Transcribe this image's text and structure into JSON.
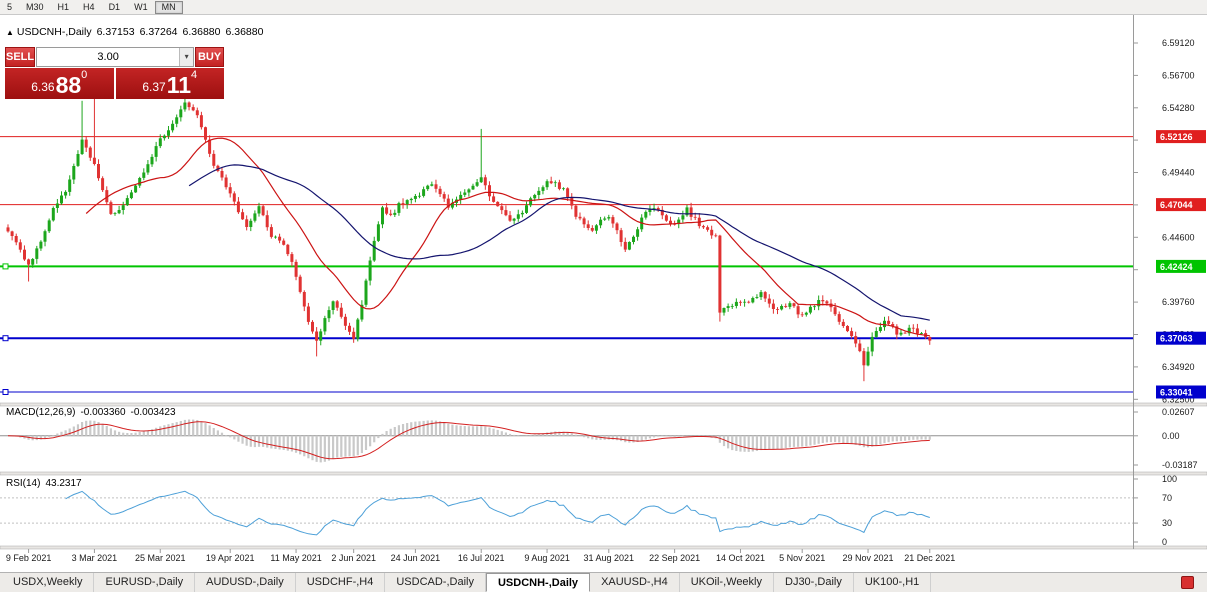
{
  "toolbar": {
    "timeframes": [
      "5",
      "M30",
      "H1",
      "H4",
      "D1",
      "W1",
      "MN"
    ],
    "active": "MN"
  },
  "chart_header": {
    "collapse_icon": "▲",
    "symbol": "USDCNH-,Daily",
    "open": "6.37153",
    "high": "6.37264",
    "low": "6.36880",
    "close": "6.36880"
  },
  "trade_panel": {
    "sell_label": "SELL",
    "buy_label": "BUY",
    "volume": "3.00",
    "dropdown_icon": "▾",
    "sell_price": {
      "prefix": "6.36",
      "big": "88",
      "sup": "0"
    },
    "buy_price": {
      "prefix": "6.37",
      "big": "11",
      "sup": "4"
    }
  },
  "indicators": {
    "macd_title": "MACD(12,26,9)",
    "macd_value1": "-0.003360",
    "macd_value2": "-0.003423",
    "rsi_title": "RSI(14)",
    "rsi_value": "43.2317"
  },
  "tabs": {
    "items": [
      "USDX,Weekly",
      "EURUSD-,Daily",
      "AUDUSD-,Daily",
      "USDCHF-,H4",
      "USDCAD-,Daily",
      "USDCNH-,Daily",
      "XAUUSD-,H4",
      "UKOil-,Weekly",
      "DJ30-,Daily",
      "UK100-,H1"
    ],
    "active_index": 5,
    "alert_icon_color": "#d83030"
  },
  "chart_data": {
    "type": "candlestick",
    "symbol": "USDCNH",
    "timeframe": "Daily",
    "last_close": 6.3688,
    "n_candles": 225,
    "price_range": {
      "top": 6.6121,
      "bottom": 6.3222
    },
    "colors": {
      "up": "#1ca61c",
      "down": "#e03232"
    },
    "close_anchors": [
      [
        0,
        6.452
      ],
      [
        3,
        6.437
      ],
      [
        5,
        6.425
      ],
      [
        8,
        6.443
      ],
      [
        11,
        6.468
      ],
      [
        14,
        6.48
      ],
      [
        18,
        6.518
      ],
      [
        21,
        6.5
      ],
      [
        25,
        6.462
      ],
      [
        28,
        6.47
      ],
      [
        31,
        6.483
      ],
      [
        34,
        6.5
      ],
      [
        37,
        6.519
      ],
      [
        40,
        6.53
      ],
      [
        43,
        6.545
      ],
      [
        46,
        6.538
      ],
      [
        48,
        6.52
      ],
      [
        50,
        6.5
      ],
      [
        54,
        6.478
      ],
      [
        58,
        6.455
      ],
      [
        61,
        6.468
      ],
      [
        64,
        6.448
      ],
      [
        67,
        6.44
      ],
      [
        69,
        6.428
      ],
      [
        71,
        6.405
      ],
      [
        73,
        6.382
      ],
      [
        75,
        6.368
      ],
      [
        77,
        6.384
      ],
      [
        79,
        6.398
      ],
      [
        81,
        6.388
      ],
      [
        83,
        6.375
      ],
      [
        84,
        6.371
      ],
      [
        86,
        6.395
      ],
      [
        88,
        6.43
      ],
      [
        90,
        6.455
      ],
      [
        91,
        6.468
      ],
      [
        93,
        6.462
      ],
      [
        95,
        6.47
      ],
      [
        97,
        6.474
      ],
      [
        100,
        6.477
      ],
      [
        103,
        6.487
      ],
      [
        105,
        6.479
      ],
      [
        107,
        6.468
      ],
      [
        109,
        6.474
      ],
      [
        111,
        6.478
      ],
      [
        113,
        6.484
      ],
      [
        115,
        6.49
      ],
      [
        117,
        6.478
      ],
      [
        119,
        6.468
      ],
      [
        122,
        6.458
      ],
      [
        125,
        6.466
      ],
      [
        127,
        6.474
      ],
      [
        129,
        6.481
      ],
      [
        131,
        6.487
      ],
      [
        133,
        6.486
      ],
      [
        135,
        6.481
      ],
      [
        138,
        6.462
      ],
      [
        140,
        6.455
      ],
      [
        142,
        6.452
      ],
      [
        144,
        6.458
      ],
      [
        146,
        6.462
      ],
      [
        148,
        6.45
      ],
      [
        150,
        6.438
      ],
      [
        152,
        6.446
      ],
      [
        154,
        6.46
      ],
      [
        156,
        6.469
      ],
      [
        158,
        6.465
      ],
      [
        160,
        6.458
      ],
      [
        162,
        6.455
      ],
      [
        164,
        6.462
      ],
      [
        165,
        6.467
      ],
      [
        167,
        6.459
      ],
      [
        169,
        6.452
      ],
      [
        171,
        6.448
      ],
      [
        172,
        6.446
      ],
      [
        173,
        6.39
      ],
      [
        175,
        6.393
      ],
      [
        177,
        6.396
      ],
      [
        179,
        6.397
      ],
      [
        181,
        6.4
      ],
      [
        183,
        6.405
      ],
      [
        185,
        6.398
      ],
      [
        186,
        6.392
      ],
      [
        188,
        6.394
      ],
      [
        190,
        6.396
      ],
      [
        192,
        6.39
      ],
      [
        193,
        6.388
      ],
      [
        195,
        6.393
      ],
      [
        197,
        6.398
      ],
      [
        199,
        6.395
      ],
      [
        200,
        6.392
      ],
      [
        202,
        6.383
      ],
      [
        203,
        6.378
      ],
      [
        205,
        6.372
      ],
      [
        206,
        6.368
      ],
      [
        208,
        6.352
      ],
      [
        209,
        6.36
      ],
      [
        210,
        6.372
      ],
      [
        212,
        6.378
      ],
      [
        213,
        6.382
      ],
      [
        215,
        6.378
      ],
      [
        216,
        6.375
      ],
      [
        218,
        6.376
      ],
      [
        220,
        6.378
      ],
      [
        222,
        6.373
      ],
      [
        224,
        6.3688
      ]
    ],
    "wick_overrides": [
      {
        "i": 5,
        "l": 6.413
      },
      {
        "i": 18,
        "h": 6.548
      },
      {
        "i": 21,
        "h": 6.553
      },
      {
        "i": 43,
        "h": 6.551
      },
      {
        "i": 75,
        "l": 6.357
      },
      {
        "i": 115,
        "h": 6.527
      },
      {
        "i": 173,
        "l": 6.383
      },
      {
        "i": 208,
        "l": 6.3385
      }
    ],
    "levels": [
      {
        "price": 6.52126,
        "label": "6.52126",
        "color": "#e01f1f",
        "width": 1,
        "marker": false
      },
      {
        "price": 6.47044,
        "label": "6.47044",
        "color": "#e01f1f",
        "width": 1,
        "marker": false
      },
      {
        "price": 6.42424,
        "label": "6.42424",
        "color": "#00c400",
        "width": 2,
        "marker": true
      },
      {
        "price": 6.37063,
        "label": "6.37063",
        "color": "#0000cd",
        "width": 2,
        "marker": true
      },
      {
        "price": 6.33041,
        "label": "6.33041",
        "color": "#0000cd",
        "width": 1,
        "marker": true
      }
    ],
    "ma": [
      {
        "period": 20,
        "color": "#cc1414"
      },
      {
        "period": 45,
        "color": "#14146e"
      }
    ],
    "y_axis": {
      "ticks": [
        {
          "v": 6.5912,
          "t": "6.59120"
        },
        {
          "v": 6.567,
          "t": "6.56700"
        },
        {
          "v": 6.5428,
          "t": "6.54280"
        },
        {
          "v": 6.5186,
          "t": "6.51860"
        },
        {
          "v": 6.4944,
          "t": "6.49440"
        },
        {
          "v": 6.4702,
          "t": "6.47020"
        },
        {
          "v": 6.446,
          "t": "6.44600"
        },
        {
          "v": 6.4218,
          "t": "6.42180"
        },
        {
          "v": 6.3976,
          "t": "6.39760"
        },
        {
          "v": 6.3734,
          "t": "6.37340"
        },
        {
          "v": 6.3492,
          "t": "6.34920"
        },
        {
          "v": 6.325,
          "t": "6.32500"
        }
      ]
    },
    "x_axis": {
      "labels": [
        {
          "i": 5,
          "t": "9 Feb 2021"
        },
        {
          "i": 21,
          "t": "3 Mar 2021"
        },
        {
          "i": 37,
          "t": "25 Mar 2021"
        },
        {
          "i": 54,
          "t": "19 Apr 2021"
        },
        {
          "i": 70,
          "t": "11 May 2021"
        },
        {
          "i": 84,
          "t": "2 Jun 2021"
        },
        {
          "i": 99,
          "t": "24 Jun 2021"
        },
        {
          "i": 115,
          "t": "16 Jul 2021"
        },
        {
          "i": 131,
          "t": "9 Aug 2021"
        },
        {
          "i": 146,
          "t": "31 Aug 2021"
        },
        {
          "i": 162,
          "t": "22 Sep 2021"
        },
        {
          "i": 178,
          "t": "14 Oct 2021"
        },
        {
          "i": 193,
          "t": "5 Nov 2021"
        },
        {
          "i": 209,
          "t": "29 Nov 2021"
        },
        {
          "i": 224,
          "t": "21 Dec 2021"
        }
      ]
    },
    "macd": {
      "fast": 12,
      "slow": 26,
      "signal": 9,
      "axis_values": [
        0.02607,
        0,
        -0.03187
      ],
      "axis_labels": [
        "0.02607",
        "0.00",
        "-0.03187"
      ],
      "hist_color": "#c9c9c9",
      "signal_color": "#d42020"
    },
    "rsi": {
      "period": 14,
      "current": 43.2317,
      "axis_values": [
        100,
        70,
        30,
        0
      ],
      "axis_labels": [
        "100",
        "70",
        "30",
        "0"
      ],
      "levels": [
        70,
        30
      ],
      "color": "#4da0d8"
    }
  }
}
